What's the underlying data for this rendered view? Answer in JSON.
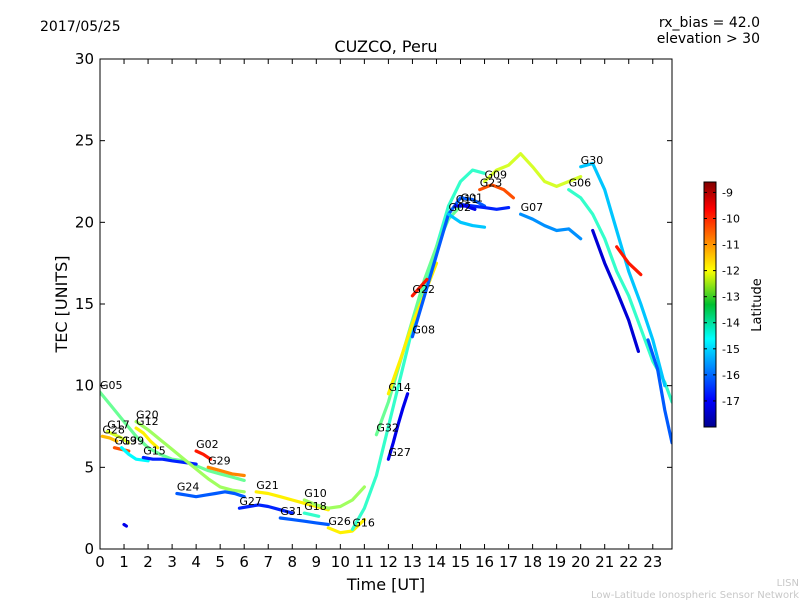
{
  "header": {
    "date": "2017/05/25",
    "rx_bias": "rx_bias = 42.0",
    "elevation": "elevation > 30"
  },
  "footer": {
    "line1": "LISN",
    "line2": "Low-Latitude Ionospheric Sensor Network"
  },
  "chart_data": {
    "type": "scatter",
    "title": "CUZCO, Peru",
    "xlabel": "Time [UT]",
    "ylabel": "TEC [UNITS]",
    "xlim": [
      0,
      23.8
    ],
    "ylim": [
      0,
      30
    ],
    "xticks": [
      "0",
      "1",
      "2",
      "3",
      "4",
      "5",
      "6",
      "7",
      "8",
      "9",
      "10",
      "11",
      "12",
      "13",
      "14",
      "15",
      "16",
      "17",
      "18",
      "19",
      "20",
      "21",
      "22",
      "23"
    ],
    "yticks": [
      "0",
      "5",
      "10",
      "15",
      "20",
      "25",
      "30"
    ],
    "grid": false,
    "colorbar": {
      "label": "Latitude",
      "range": [
        -18,
        -8.6
      ],
      "ticks": [
        "-9",
        "-10",
        "-11",
        "-12",
        "-13",
        "-14",
        "-15",
        "-16",
        "-17"
      ],
      "colormap": "jet"
    },
    "series": [
      {
        "name": "G05",
        "lat": -13.5,
        "points": [
          [
            0,
            9.6
          ],
          [
            0.5,
            8.7
          ],
          [
            1,
            7.8
          ],
          [
            1.5,
            6.9
          ],
          [
            2,
            6.2
          ],
          [
            2.5,
            5.8
          ],
          [
            3,
            5.5
          ],
          [
            3.5,
            5.4
          ],
          [
            4,
            5.1
          ],
          [
            4.5,
            4.8
          ],
          [
            5,
            4.6
          ],
          [
            5.5,
            4.4
          ],
          [
            6,
            4.2
          ]
        ]
      },
      {
        "name": "G28",
        "lat": -11.5,
        "points": [
          [
            0.1,
            6.9
          ],
          [
            0.4,
            6.8
          ],
          [
            0.7,
            6.6
          ]
        ]
      },
      {
        "name": "G17",
        "lat": -12.5,
        "points": [
          [
            0.3,
            7.2
          ],
          [
            0.6,
            7.0
          ],
          [
            0.9,
            6.8
          ],
          [
            1.2,
            6.5
          ]
        ]
      },
      {
        "name": "G19",
        "lat": -10.5,
        "points": [
          [
            0.6,
            6.2
          ],
          [
            0.9,
            6.1
          ],
          [
            1.2,
            6.0
          ]
        ]
      },
      {
        "name": "G39",
        "lat": -14.5,
        "points": [
          [
            0.9,
            6.2
          ],
          [
            1.2,
            5.8
          ],
          [
            1.5,
            5.5
          ],
          [
            2,
            5.4
          ]
        ]
      },
      {
        "name": "G15",
        "lat": -16.5,
        "points": [
          [
            1.8,
            5.6
          ],
          [
            2.2,
            5.5
          ],
          [
            2.6,
            5.5
          ],
          [
            3,
            5.4
          ],
          [
            3.5,
            5.3
          ],
          [
            4,
            5.2
          ]
        ]
      },
      {
        "name": "G20",
        "lat": -13.0,
        "points": [
          [
            1.5,
            7.8
          ],
          [
            2,
            7.3
          ],
          [
            2.5,
            6.7
          ],
          [
            3,
            6.1
          ],
          [
            3.5,
            5.5
          ],
          [
            4,
            4.9
          ],
          [
            4.5,
            4.3
          ],
          [
            5,
            3.8
          ],
          [
            5.5,
            3.6
          ],
          [
            6,
            3.5
          ]
        ]
      },
      {
        "name": "G12",
        "lat": -12.0,
        "points": [
          [
            1.5,
            7.4
          ],
          [
            1.8,
            7.1
          ],
          [
            2.1,
            6.6
          ],
          [
            2.4,
            6.2
          ]
        ]
      },
      {
        "name": "G02",
        "lat": -10.0,
        "points": [
          [
            4,
            6.0
          ],
          [
            4.3,
            5.8
          ],
          [
            4.6,
            5.5
          ]
        ]
      },
      {
        "name": "G29",
        "lat": -11.0,
        "points": [
          [
            4.5,
            5.0
          ],
          [
            5,
            4.8
          ],
          [
            5.5,
            4.6
          ],
          [
            6,
            4.5
          ]
        ]
      },
      {
        "name": "G24",
        "lat": -16.0,
        "points": [
          [
            3.2,
            3.4
          ],
          [
            3.6,
            3.3
          ],
          [
            4,
            3.2
          ],
          [
            4.4,
            3.3
          ],
          [
            4.8,
            3.4
          ],
          [
            5.2,
            3.5
          ],
          [
            5.6,
            3.4
          ],
          [
            6,
            3.2
          ]
        ]
      },
      {
        "name": "G27",
        "lat": -16.5,
        "points": [
          [
            5.8,
            2.5
          ],
          [
            6.2,
            2.6
          ],
          [
            6.6,
            2.7
          ],
          [
            7,
            2.6
          ],
          [
            7.5,
            2.4
          ],
          [
            8,
            2.2
          ]
        ]
      },
      {
        "name": "G21",
        "lat": -12.0,
        "points": [
          [
            6.5,
            3.5
          ],
          [
            7,
            3.4
          ],
          [
            7.5,
            3.2
          ],
          [
            8,
            3.0
          ],
          [
            8.5,
            2.8
          ],
          [
            9,
            2.6
          ],
          [
            9.5,
            2.4
          ]
        ]
      },
      {
        "name": "G31",
        "lat": -16.0,
        "points": [
          [
            7.5,
            1.9
          ],
          [
            8,
            1.8
          ],
          [
            8.5,
            1.7
          ],
          [
            9,
            1.6
          ],
          [
            9.5,
            1.5
          ]
        ]
      },
      {
        "name": "G18",
        "lat": -14.0,
        "points": [
          [
            8.5,
            2.2
          ],
          [
            8.8,
            2.1
          ],
          [
            9.1,
            2.0
          ]
        ]
      },
      {
        "name": "G10",
        "lat": -13.0,
        "points": [
          [
            8.5,
            3.0
          ],
          [
            9,
            2.7
          ],
          [
            9.5,
            2.5
          ],
          [
            10,
            2.6
          ],
          [
            10.5,
            3.0
          ],
          [
            11,
            3.8
          ]
        ]
      },
      {
        "name": "G26",
        "lat": -12.0,
        "points": [
          [
            9.5,
            1.3
          ],
          [
            10,
            1.0
          ],
          [
            10.5,
            1.1
          ],
          [
            11,
            1.8
          ]
        ]
      },
      {
        "name": "G16",
        "lat": -14.0,
        "points": [
          [
            10.5,
            1.2
          ],
          [
            11,
            2.5
          ],
          [
            11.5,
            4.5
          ],
          [
            12,
            7.5
          ],
          [
            12.5,
            10.5
          ],
          [
            13,
            13.5
          ],
          [
            13.5,
            16
          ],
          [
            14,
            18.5
          ],
          [
            14.5,
            21
          ],
          [
            15,
            22.5
          ],
          [
            15.5,
            23.2
          ],
          [
            16,
            23.0
          ]
        ]
      },
      {
        "name": "G27",
        "lat": -17.0,
        "points": [
          [
            12,
            5.5
          ],
          [
            12.2,
            6.5
          ],
          [
            12.4,
            7.6
          ],
          [
            12.6,
            8.6
          ],
          [
            12.8,
            9.5
          ]
        ]
      },
      {
        "name": "G32",
        "lat": -13.5,
        "points": [
          [
            11.5,
            7.0
          ],
          [
            12,
            9.0
          ],
          [
            12.5,
            11.5
          ],
          [
            13,
            14.0
          ],
          [
            13.5,
            16.5
          ],
          [
            14,
            18.5
          ],
          [
            14.5,
            20.2
          ],
          [
            15,
            21.0
          ]
        ]
      },
      {
        "name": "G14",
        "lat": -12.0,
        "points": [
          [
            12,
            9.5
          ],
          [
            12.5,
            11.6
          ],
          [
            13,
            13.8
          ],
          [
            13.5,
            15.6
          ],
          [
            14,
            17.5
          ]
        ]
      },
      {
        "name": "G08",
        "lat": -16.0,
        "points": [
          [
            13,
            13.0
          ],
          [
            13.5,
            15.5
          ],
          [
            14,
            18.0
          ],
          [
            14.5,
            20.5
          ],
          [
            15,
            21.5
          ],
          [
            15.5,
            21.4
          ],
          [
            16,
            21.0
          ]
        ]
      },
      {
        "name": "G22",
        "lat": -10.0,
        "points": [
          [
            13,
            15.5
          ],
          [
            13.3,
            16.0
          ],
          [
            13.6,
            16.5
          ]
        ]
      },
      {
        "name": "G23",
        "lat": -10.5,
        "points": [
          [
            15.8,
            22.0
          ],
          [
            16.3,
            22.3
          ],
          [
            16.8,
            22.0
          ],
          [
            17.2,
            21.5
          ]
        ]
      },
      {
        "name": "G01",
        "lat": -16.5,
        "points": [
          [
            15,
            21.1
          ],
          [
            15.5,
            21.0
          ],
          [
            16,
            20.9
          ],
          [
            16.5,
            20.8
          ],
          [
            17,
            20.9
          ]
        ]
      },
      {
        "name": "G11",
        "lat": -17.0,
        "points": [
          [
            14.8,
            21.0
          ],
          [
            15.2,
            21.0
          ],
          [
            15.6,
            20.8
          ]
        ]
      },
      {
        "name": "G02",
        "lat": -15.0,
        "points": [
          [
            14.5,
            20.5
          ],
          [
            15,
            20.0
          ],
          [
            15.5,
            19.8
          ],
          [
            16,
            19.7
          ]
        ]
      },
      {
        "name": "G09",
        "lat": -12.5,
        "points": [
          [
            16,
            22.5
          ],
          [
            16.5,
            23.2
          ],
          [
            17,
            23.5
          ],
          [
            17.5,
            24.2
          ],
          [
            18,
            23.4
          ],
          [
            18.5,
            22.5
          ],
          [
            19,
            22.2
          ],
          [
            19.5,
            22.5
          ],
          [
            20,
            22.8
          ]
        ]
      },
      {
        "name": "G07",
        "lat": -15.5,
        "points": [
          [
            17.5,
            20.5
          ],
          [
            18,
            20.2
          ],
          [
            18.5,
            19.8
          ],
          [
            19,
            19.5
          ],
          [
            19.5,
            19.6
          ],
          [
            20,
            19.0
          ]
        ]
      },
      {
        "name": "G06",
        "lat": -14.0,
        "points": [
          [
            19.5,
            22.0
          ],
          [
            20,
            21.5
          ],
          [
            20.5,
            20.5
          ],
          [
            21,
            19.0
          ],
          [
            21.5,
            17.0
          ],
          [
            22,
            15.5
          ],
          [
            22.5,
            13.5
          ],
          [
            23,
            11.5
          ],
          [
            23.5,
            10.2
          ],
          [
            23.8,
            9.0
          ]
        ]
      },
      {
        "name": "G30",
        "lat": -15.0,
        "points": [
          [
            20,
            23.4
          ],
          [
            20.5,
            23.6
          ],
          [
            21,
            22.0
          ],
          [
            21.5,
            19.5
          ],
          [
            22,
            17.0
          ],
          [
            22.5,
            15.0
          ],
          [
            23,
            12.8
          ],
          [
            23.5,
            10.0
          ]
        ]
      },
      {
        "name": "",
        "lat": -17.2,
        "points": [
          [
            20.5,
            19.5
          ],
          [
            21,
            17.5
          ],
          [
            21.5,
            15.8
          ],
          [
            22,
            14.0
          ],
          [
            22.4,
            12.1
          ]
        ]
      },
      {
        "name": "",
        "lat": -16.0,
        "points": [
          [
            22.8,
            12.8
          ],
          [
            23.2,
            11.0
          ],
          [
            23.5,
            8.5
          ],
          [
            23.8,
            6.5
          ]
        ]
      },
      {
        "name": "",
        "lat": -10.0,
        "points": [
          [
            21.5,
            18.5
          ],
          [
            22,
            17.5
          ],
          [
            22.5,
            16.8
          ]
        ]
      },
      {
        "name": "",
        "lat": -17.0,
        "points": [
          [
            1.0,
            1.5
          ],
          [
            1.1,
            1.4
          ]
        ]
      }
    ]
  }
}
